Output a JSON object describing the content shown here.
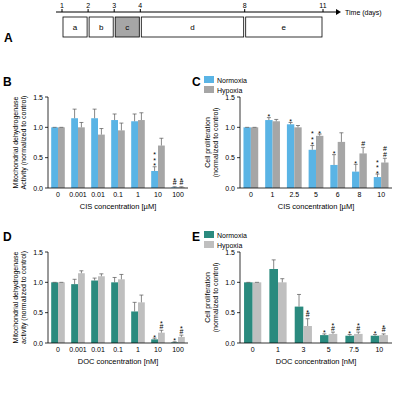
{
  "timeline": {
    "panel_label": "A",
    "axis_label": "Time (days)",
    "ticks": [
      1,
      2,
      3,
      4,
      8,
      11
    ],
    "steps": [
      {
        "label": "a",
        "start": 1,
        "end": 2,
        "color": "#ffffff"
      },
      {
        "label": "b",
        "start": 2,
        "end": 3,
        "color": "#ffffff"
      },
      {
        "label": "c",
        "start": 3,
        "end": 4,
        "color": "#a6a6a6"
      },
      {
        "label": "d",
        "start": 4,
        "end": 8,
        "color": "#ffffff"
      },
      {
        "label": "e",
        "start": 8,
        "end": 11,
        "color": "#ffffff"
      }
    ]
  },
  "chart_data": [
    {
      "type": "bar",
      "panel_label": "B",
      "y_label": [
        "Mitochondrial dehydrogenase",
        "Activity (normalized to control)"
      ],
      "x_label": "CIS concentration [µM]",
      "categories": [
        "0",
        "0.001",
        "0.01",
        "0.1",
        "1",
        "10",
        "100"
      ],
      "ylim": [
        0,
        1.5
      ],
      "yticks": [
        {
          "value": 0,
          "label": "0.0"
        },
        {
          "value": 0.5,
          "label": "0.5"
        },
        {
          "value": 1,
          "label": "1.0"
        },
        {
          "value": 1.5,
          "label": "1.5"
        }
      ],
      "series": [
        {
          "color": "#5ab4e5",
          "values": [
            1,
            1.15,
            1.15,
            1.12,
            1.1,
            0.28,
            0.01
          ],
          "errors": [
            0,
            0.15,
            0.15,
            0.1,
            0.12,
            0.07,
            0.01
          ],
          "annotations": [
            null,
            null,
            null,
            null,
            null,
            "***",
            "*#"
          ]
        },
        {
          "color": "#a6a6a6",
          "values": [
            1,
            1.0,
            0.88,
            0.95,
            1.12,
            0.7,
            0.01
          ],
          "errors": [
            0,
            0.08,
            0.1,
            0.12,
            0.12,
            0.12,
            0.01
          ],
          "annotations": [
            null,
            null,
            null,
            null,
            null,
            null,
            "*#"
          ]
        }
      ]
    },
    {
      "type": "bar",
      "panel_label": "C",
      "y_label": [
        "Cell proliferation",
        "(normalized to control)"
      ],
      "x_label": "CIS concentration [µM]",
      "categories": [
        "0",
        "1",
        "2.5",
        "5",
        "6",
        "8",
        "10"
      ],
      "ylim": [
        0,
        1.5
      ],
      "yticks": [
        {
          "value": 0,
          "label": "0.0"
        },
        {
          "value": 0.5,
          "label": "0.5"
        },
        {
          "value": 1,
          "label": "1.0"
        },
        {
          "value": 1.5,
          "label": "1.5"
        }
      ],
      "legend": "top-left",
      "series": [
        {
          "name": "Normoxia",
          "color": "#5ab4e5",
          "values": [
            1,
            1.12,
            1.05,
            0.63,
            0.38,
            0.27,
            0.18
          ],
          "errors": [
            0,
            0.04,
            0.03,
            0.07,
            0.17,
            0.12,
            0.05
          ],
          "annotations": [
            null,
            "*",
            "*",
            "***",
            "*",
            "*",
            "***"
          ]
        },
        {
          "name": "Hypoxia",
          "color": "#a6a6a6",
          "values": [
            1,
            1.1,
            1.0,
            0.86,
            0.76,
            0.57,
            0.42
          ],
          "errors": [
            0,
            0.03,
            0.03,
            0.03,
            0.15,
            0.1,
            0.07
          ],
          "annotations": [
            null,
            null,
            null,
            "*",
            null,
            "#",
            "##"
          ]
        }
      ]
    },
    {
      "type": "bar",
      "panel_label": "D",
      "y_label": [
        "Mitochondrial dehydrogenase",
        "activity (normalized to control)"
      ],
      "x_label": "DOC concentration [nM]",
      "categories": [
        "0",
        "0.001",
        "0.01",
        "0.1",
        "1",
        "10",
        "100"
      ],
      "ylim": [
        0,
        1.5
      ],
      "yticks": [
        {
          "value": 0,
          "label": "0.0"
        },
        {
          "value": 0.5,
          "label": "0.5"
        },
        {
          "value": 1,
          "label": "1.0"
        },
        {
          "value": 1.5,
          "label": "1.5"
        }
      ],
      "series": [
        {
          "color": "#2a8a7e",
          "values": [
            1,
            0.97,
            1.03,
            1.0,
            0.52,
            0.06,
            0.01
          ],
          "errors": [
            0,
            0.08,
            0.04,
            0.08,
            0.15,
            0.02,
            0.01
          ],
          "annotations": [
            null,
            null,
            null,
            null,
            null,
            "*",
            "*"
          ]
        },
        {
          "color": "#bfbfbf",
          "values": [
            1,
            1.15,
            1.1,
            1.05,
            0.67,
            0.17,
            0.1
          ],
          "errors": [
            0,
            0.04,
            0.04,
            0.08,
            0.12,
            0.04,
            0.03
          ],
          "annotations": [
            null,
            null,
            null,
            null,
            null,
            "*#",
            "*#"
          ]
        }
      ]
    },
    {
      "type": "bar",
      "panel_label": "E",
      "y_label": [
        "Cell proliferation",
        "(normalized to control)"
      ],
      "x_label": "DOC concentration [nM]",
      "categories": [
        "0",
        "1",
        "3",
        "5",
        "7.5",
        "10"
      ],
      "ylim": [
        0,
        1.5
      ],
      "yticks": [
        {
          "value": 0,
          "label": "0.0"
        },
        {
          "value": 0.5,
          "label": "0.5"
        },
        {
          "value": 1,
          "label": "1.0"
        },
        {
          "value": 1.5,
          "label": "1.5"
        }
      ],
      "legend": "top-left",
      "series": [
        {
          "name": "Normoxia",
          "color": "#2a8a7e",
          "values": [
            1,
            1.22,
            0.6,
            0.13,
            0.12,
            0.12
          ],
          "errors": [
            0,
            0.15,
            0.2,
            0.02,
            0.02,
            0.02
          ],
          "annotations": [
            null,
            null,
            null,
            "*",
            "*",
            "*"
          ]
        },
        {
          "name": "Hypoxia",
          "color": "#bfbfbf",
          "values": [
            1,
            1.0,
            0.28,
            0.15,
            0.15,
            0.13
          ],
          "errors": [
            0,
            0.06,
            0.12,
            0.03,
            0.03,
            0.02
          ],
          "annotations": [
            null,
            null,
            "*#",
            "*#",
            "*#",
            "*#"
          ]
        }
      ]
    }
  ]
}
